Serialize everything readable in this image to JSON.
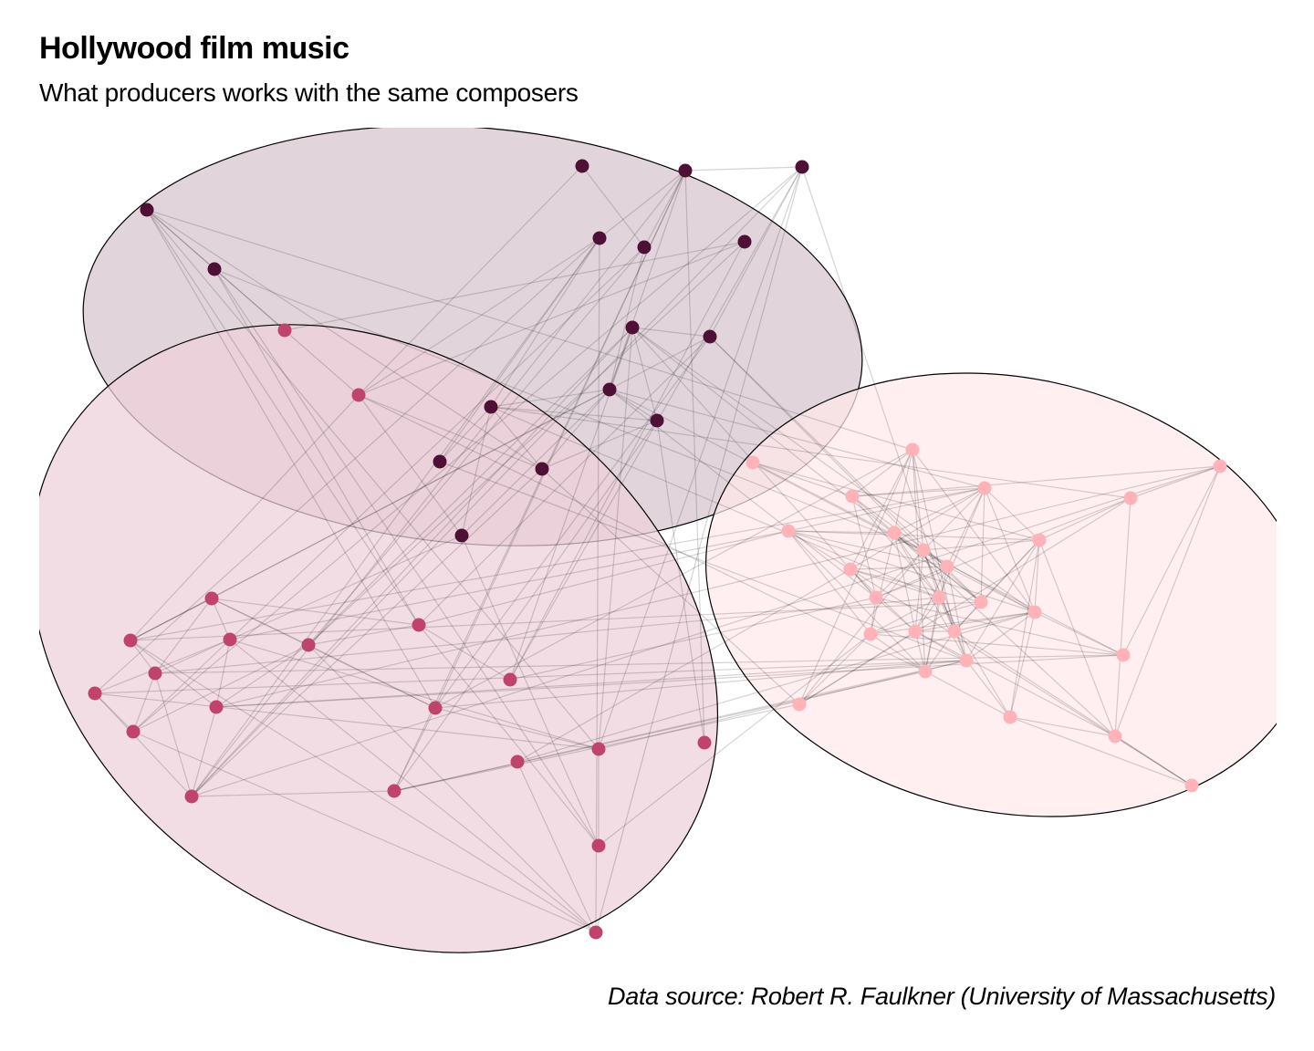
{
  "title": "Hollywood film music",
  "subtitle": "What producers works with the same composers",
  "caption": "Data source: Robert R. Faulkner (University of Massachusetts)",
  "colors": {
    "group1": "#4f1035",
    "group2": "#c0436b",
    "group3": "#ffb3b8",
    "group1_fill": "#d5c5cd",
    "group2_fill": "#edd0d9",
    "group3_fill": "#ffe9ea",
    "edge": "#000000"
  }
}
